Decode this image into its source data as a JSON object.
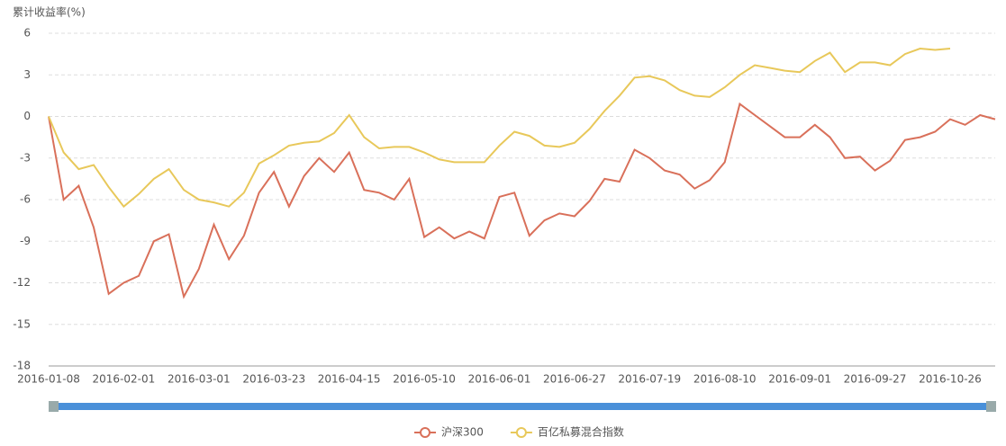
{
  "chart_data": {
    "type": "line",
    "y_label": "累计收益率(%)",
    "categories": [
      "2016-01-08",
      null,
      null,
      null,
      null,
      "2016-02-01",
      null,
      null,
      null,
      null,
      "2016-03-01",
      null,
      null,
      null,
      null,
      "2016-03-23",
      null,
      null,
      null,
      null,
      "2016-04-15",
      null,
      null,
      null,
      null,
      "2016-05-10",
      null,
      null,
      null,
      null,
      "2016-06-01",
      null,
      null,
      null,
      null,
      "2016-06-27",
      null,
      null,
      null,
      null,
      "2016-07-19",
      null,
      null,
      null,
      null,
      "2016-08-10",
      null,
      null,
      null,
      null,
      "2016-09-01",
      null,
      null,
      null,
      null,
      "2016-09-27",
      null,
      null,
      null,
      null,
      "2016-10-26",
      null,
      null,
      null
    ],
    "series": [
      {
        "name": "沪深300",
        "color": "#d9705a",
        "values": [
          0,
          -6,
          -5,
          -8,
          -12.8,
          -12,
          -11.5,
          -9,
          -8.5,
          -13,
          -11,
          -7.8,
          -10.3,
          -8.6,
          -5.5,
          -4,
          -6.5,
          -4.3,
          -3,
          -4,
          -2.6,
          -5.3,
          -5.5,
          -6,
          -4.5,
          -8.7,
          -8,
          -8.8,
          -8.3,
          -8.8,
          -5.8,
          -5.5,
          -8.6,
          -7.5,
          -7,
          -7.2,
          -6.1,
          -4.5,
          -4.7,
          -2.4,
          -3,
          -3.9,
          -4.2,
          -5.2,
          -4.6,
          -3.3,
          0.9,
          0.1,
          -0.7,
          -1.5,
          -1.5,
          -0.6,
          -1.5,
          -3,
          -2.9,
          -3.9,
          -3.2,
          -1.7,
          -1.5,
          -1.1,
          -0.2,
          -0.6,
          0.1,
          -0.2
        ]
      },
      {
        "name": "百亿私募混合指数",
        "color": "#e8c85a",
        "values": [
          0,
          -2.6,
          -3.8,
          -3.5,
          -5.1,
          -6.5,
          -5.6,
          -4.5,
          -3.8,
          -5.3,
          -6,
          -6.2,
          -6.5,
          -5.5,
          -3.4,
          -2.8,
          -2.1,
          -1.9,
          -1.8,
          -1.2,
          0.1,
          -1.5,
          -2.3,
          -2.2,
          -2.2,
          -2.6,
          -3.1,
          -3.3,
          -3.3,
          -3.3,
          -2.1,
          -1.1,
          -1.4,
          -2.1,
          -2.2,
          -1.9,
          -0.9,
          0.4,
          1.5,
          2.8,
          2.9,
          2.6,
          1.9,
          1.5,
          1.4,
          2.1,
          3,
          3.7,
          3.5,
          3.3,
          3.2,
          4,
          4.6,
          3.2,
          3.9,
          3.9,
          3.7,
          4.5,
          4.9,
          4.8,
          4.9,
          null,
          null,
          null
        ]
      }
    ],
    "ylim": [
      -18,
      6
    ],
    "yticks": [
      -18,
      -15,
      -12,
      -9,
      -6,
      -3,
      0,
      3,
      6
    ],
    "grid": true
  }
}
